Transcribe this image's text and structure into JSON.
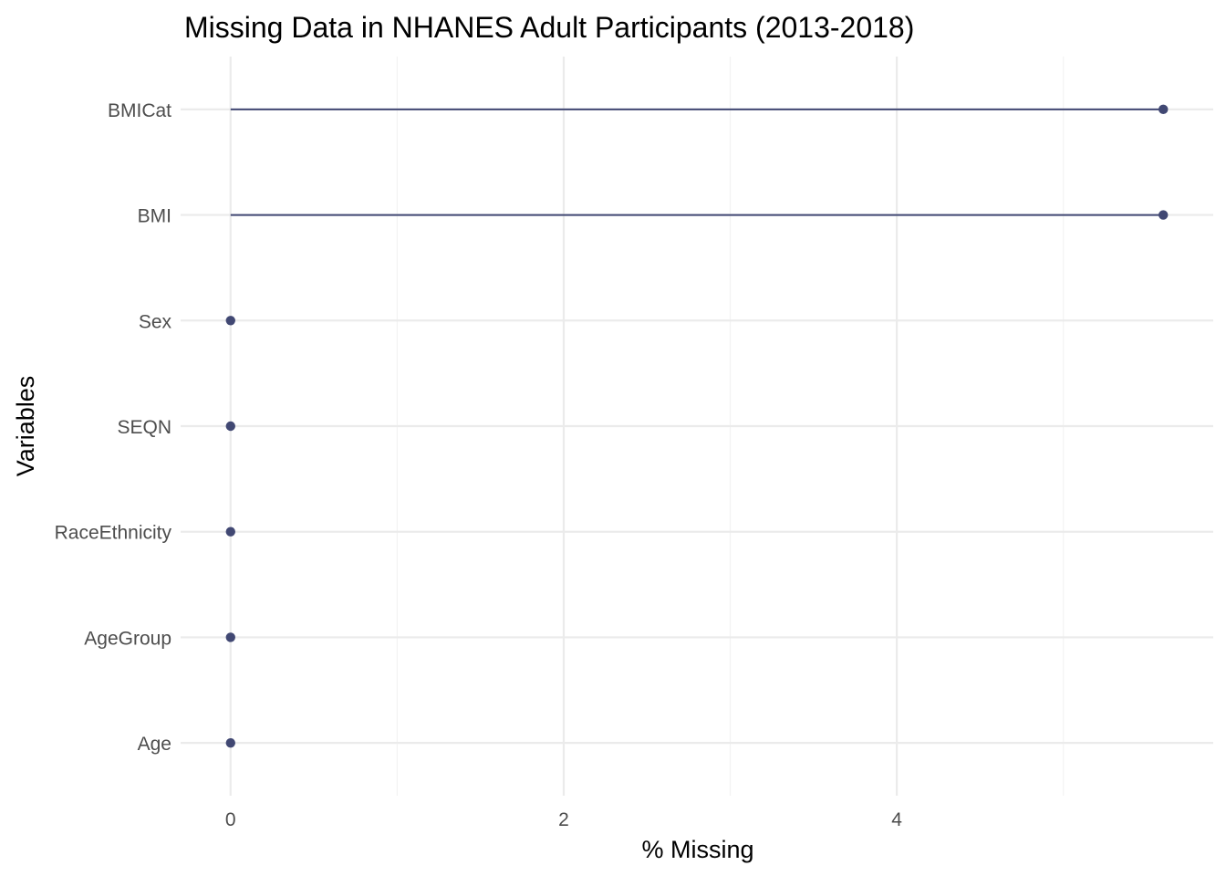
{
  "chart_data": {
    "type": "lollipop",
    "title": "Missing Data in NHANES Adult Participants (2013-2018)",
    "xlabel": "% Missing",
    "ylabel": "Variables",
    "xlim": [
      -0.3,
      5.9
    ],
    "x_ticks": [
      0,
      2,
      4
    ],
    "grid": true,
    "legend": "none",
    "color": "#414873",
    "categories": [
      "BMICat",
      "BMI",
      "Sex",
      "SEQN",
      "RaceEthnicity",
      "AgeGroup",
      "Age"
    ],
    "values": [
      5.6,
      5.6,
      0,
      0,
      0,
      0,
      0
    ]
  }
}
